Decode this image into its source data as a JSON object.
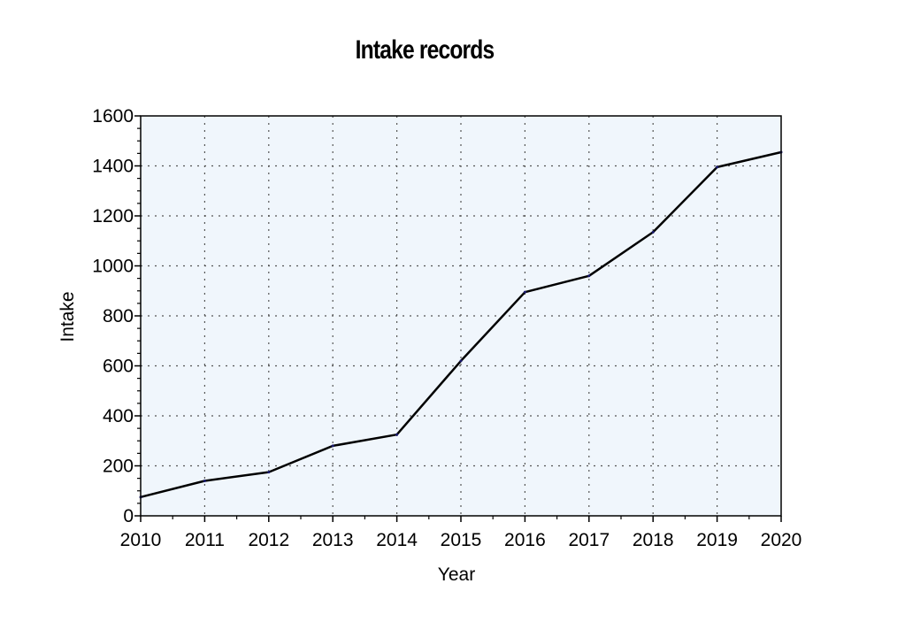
{
  "chart_data": {
    "type": "line",
    "title": "Intake records",
    "xlabel": "Year",
    "ylabel": "Intake",
    "x": [
      2010,
      2011,
      2012,
      2013,
      2014,
      2015,
      2016,
      2017,
      2018,
      2019,
      2020
    ],
    "series": [
      {
        "values": [
          75,
          140,
          175,
          280,
          325,
          620,
          895,
          960,
          1135,
          1395,
          1455
        ]
      }
    ],
    "xlim": [
      2010,
      2020
    ],
    "ylim": [
      0,
      1600
    ],
    "xticks": [
      "2010",
      "2011",
      "2012",
      "2013",
      "2014",
      "2015",
      "2016",
      "2017",
      "2018",
      "2019",
      "2020"
    ],
    "yticks": [
      "0",
      "200",
      "400",
      "600",
      "800",
      "1000",
      "1200",
      "1400",
      "1600"
    ],
    "grid": true,
    "legend": "none",
    "colors": {
      "plot_background": "#f0f6fc",
      "line": "#000000",
      "grid": "#555555"
    }
  }
}
